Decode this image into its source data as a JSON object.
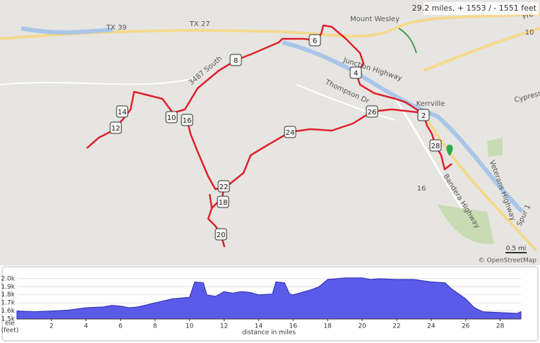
{
  "map": {
    "stats": "29.2 miles, + 1553 / - 1551 feet",
    "attribution": "© OpenStreetMap",
    "scale": "0.5 mi",
    "labels": [
      "TX 39",
      "TX 27",
      "Mount Wesley",
      "Kerrville",
      "Junction Highway",
      "Thompson Dr",
      "3487 South",
      "Bandera Highway",
      "Veterans Highway",
      "Spur 1",
      "Cypress",
      "Fre",
      "16",
      "10"
    ],
    "markers": [
      "2",
      "4",
      "6",
      "8",
      "10",
      "12",
      "14",
      "16",
      "18",
      "20",
      "22",
      "24",
      "26",
      "28"
    ]
  },
  "chart_data": {
    "type": "area",
    "xlabel": "distance in miles",
    "ylabel": "ele",
    "ylabel_unit": "(feet)",
    "color": "#5b5bea",
    "x": [
      0,
      1,
      2,
      3,
      4,
      5,
      5.5,
      6,
      6.5,
      7,
      8,
      9,
      9.5,
      10,
      10.3,
      10.8,
      11,
      11.5,
      12,
      12.5,
      13,
      13.5,
      14,
      14.8,
      15,
      15.5,
      15.8,
      16,
      17,
      17.5,
      18,
      19,
      20,
      20.5,
      21,
      22,
      23,
      24,
      24.8,
      25.2,
      26,
      26.5,
      27,
      28,
      29,
      29.2
    ],
    "values": [
      1600,
      1590,
      1600,
      1610,
      1640,
      1650,
      1670,
      1660,
      1640,
      1650,
      1700,
      1750,
      1760,
      1770,
      1960,
      1950,
      1800,
      1780,
      1840,
      1820,
      1840,
      1830,
      1800,
      1810,
      1960,
      1950,
      1810,
      1800,
      1860,
      1900,
      1990,
      2010,
      2010,
      1990,
      2000,
      1990,
      1990,
      1960,
      1950,
      1870,
      1750,
      1640,
      1590,
      1580,
      1570,
      1590
    ],
    "xlim": [
      0,
      29.2
    ],
    "xticks": [
      2,
      4,
      6,
      8,
      10,
      12,
      14,
      16,
      18,
      20,
      22,
      24,
      26,
      28
    ],
    "ylim": [
      1500,
      2060
    ],
    "yticks": [
      {
        "value": 1500,
        "label": "1.5k"
      },
      {
        "value": 1600,
        "label": "1.6k"
      },
      {
        "value": 1700,
        "label": "1.7k"
      },
      {
        "value": 1800,
        "label": "1.8k"
      },
      {
        "value": 1900,
        "label": "1.9k"
      },
      {
        "value": 2000,
        "label": "2.0k"
      }
    ],
    "grid": true
  }
}
